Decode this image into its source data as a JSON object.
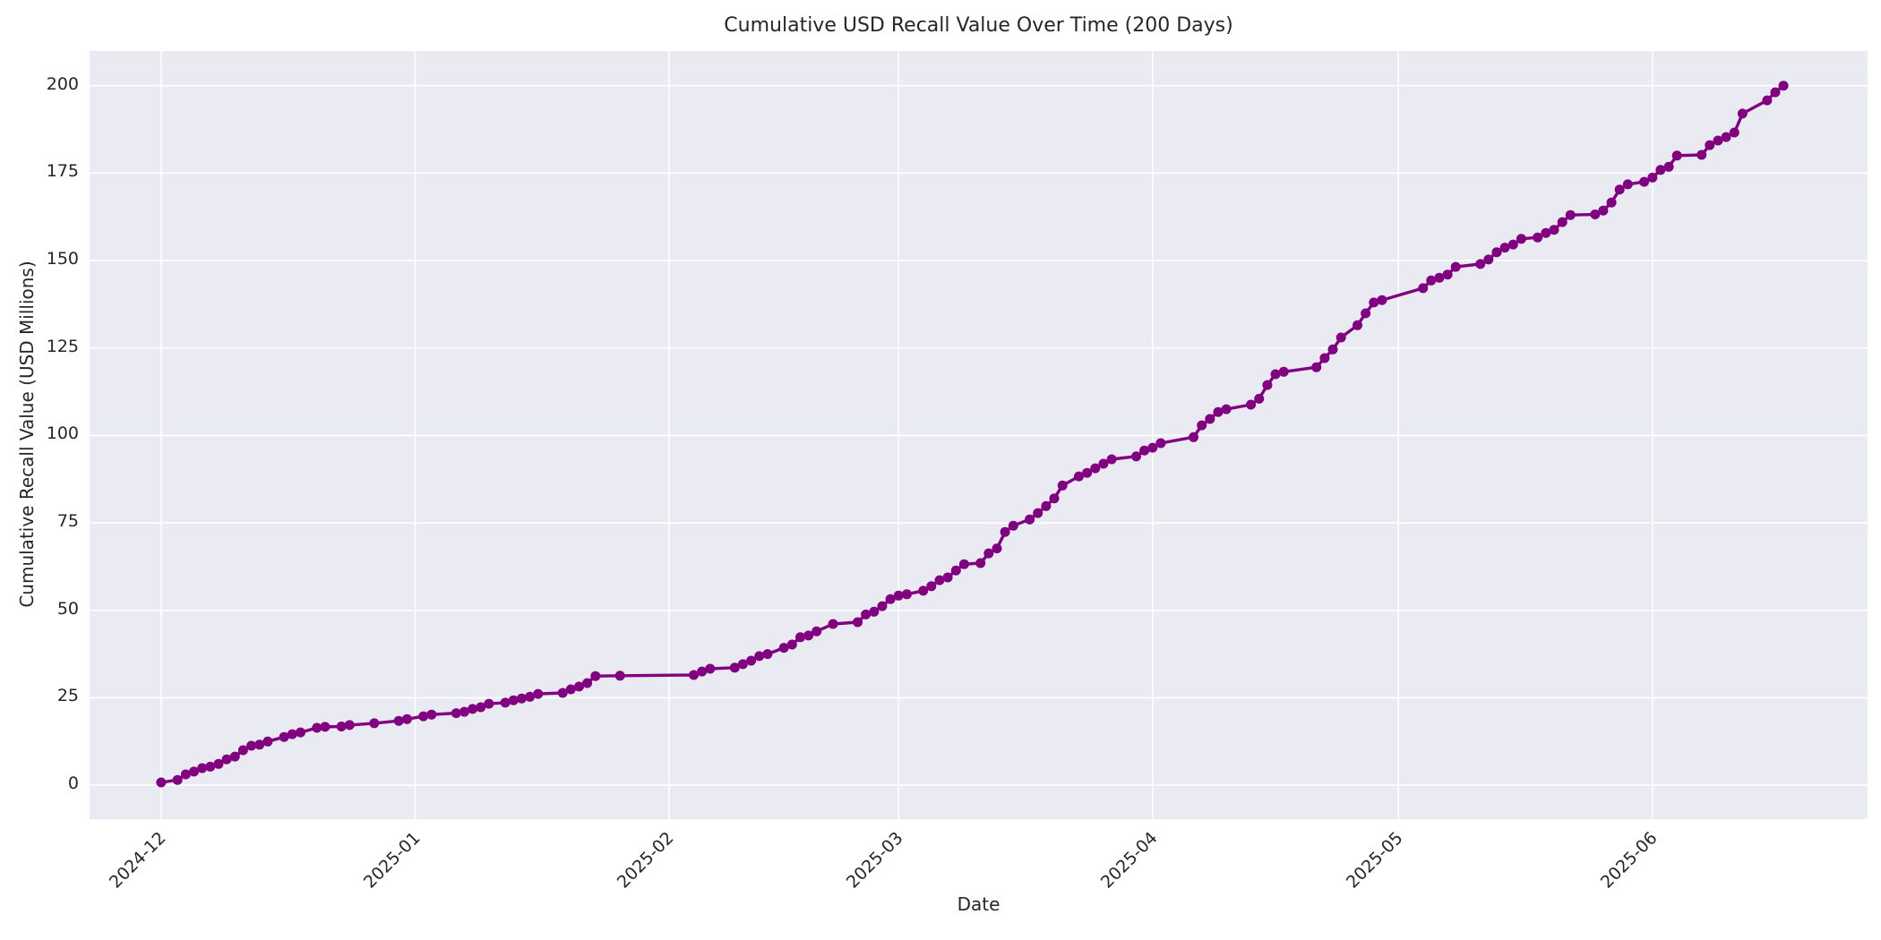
{
  "chart_data": {
    "type": "line",
    "title": "Cumulative USD Recall Value Over Time (200 Days)",
    "xlabel": "Date",
    "ylabel": "Cumulative Recall Value (USD Millions)",
    "legend_position": "none",
    "grid": true,
    "style": {
      "plot_bg": "#eaeaf2",
      "grid_color": "#ffffff",
      "line_color": "#800080",
      "marker_color": "#800080",
      "text_color": "#262626",
      "line_width": 3.4,
      "marker_radius": 5.5
    },
    "x_start_date": "2024-12-01",
    "x_tick_labels": [
      "2024-12",
      "2025-01",
      "2025-02",
      "2025-03",
      "2025-04",
      "2025-05",
      "2025-06"
    ],
    "x_tick_days": [
      0,
      31,
      62,
      90,
      121,
      151,
      182
    ],
    "y_ticks": [
      0,
      25,
      50,
      75,
      100,
      125,
      150,
      175,
      200
    ],
    "xlim_days": [
      -8.74,
      208.26
    ],
    "ylim": [
      -9.7,
      209.9
    ],
    "points": [
      [
        "2024-12-01",
        0.8
      ],
      [
        "2024-12-03",
        1.5
      ],
      [
        "2024-12-04",
        3.1
      ],
      [
        "2024-12-05",
        3.9
      ],
      [
        "2024-12-06",
        4.9
      ],
      [
        "2024-12-07",
        5.3
      ],
      [
        "2024-12-08",
        6.1
      ],
      [
        "2024-12-09",
        7.4
      ],
      [
        "2024-12-10",
        8.2
      ],
      [
        "2024-12-11",
        10.0
      ],
      [
        "2024-12-12",
        11.3
      ],
      [
        "2024-12-13",
        11.6
      ],
      [
        "2024-12-14",
        12.5
      ],
      [
        "2024-12-16",
        13.8
      ],
      [
        "2024-12-17",
        14.6
      ],
      [
        "2024-12-18",
        15.1
      ],
      [
        "2024-12-20",
        16.4
      ],
      [
        "2024-12-21",
        16.7
      ],
      [
        "2024-12-23",
        16.8
      ],
      [
        "2024-12-24",
        17.2
      ],
      [
        "2024-12-27",
        17.7
      ],
      [
        "2024-12-30",
        18.4
      ],
      [
        "2024-12-31",
        18.9
      ],
      [
        "2025-01-02",
        19.7
      ],
      [
        "2025-01-03",
        20.2
      ],
      [
        "2025-01-06",
        20.6
      ],
      [
        "2025-01-07",
        21.0
      ],
      [
        "2025-01-08",
        21.8
      ],
      [
        "2025-01-09",
        22.3
      ],
      [
        "2025-01-10",
        23.3
      ],
      [
        "2025-01-12",
        23.6
      ],
      [
        "2025-01-13",
        24.3
      ],
      [
        "2025-01-14",
        24.8
      ],
      [
        "2025-01-15",
        25.3
      ],
      [
        "2025-01-16",
        26.1
      ],
      [
        "2025-01-19",
        26.4
      ],
      [
        "2025-01-20",
        27.4
      ],
      [
        "2025-01-21",
        28.2
      ],
      [
        "2025-01-22",
        29.2
      ],
      [
        "2025-01-23",
        31.2
      ],
      [
        "2025-01-26",
        31.3
      ],
      [
        "2025-02-04",
        31.5
      ],
      [
        "2025-02-05",
        32.5
      ],
      [
        "2025-02-06",
        33.3
      ],
      [
        "2025-02-09",
        33.6
      ],
      [
        "2025-02-10",
        34.6
      ],
      [
        "2025-02-11",
        35.6
      ],
      [
        "2025-02-12",
        36.9
      ],
      [
        "2025-02-13",
        37.5
      ],
      [
        "2025-02-15",
        39.3
      ],
      [
        "2025-02-16",
        40.2
      ],
      [
        "2025-02-17",
        42.3
      ],
      [
        "2025-02-18",
        42.8
      ],
      [
        "2025-02-19",
        44.0
      ],
      [
        "2025-02-21",
        46.1
      ],
      [
        "2025-02-24",
        46.6
      ],
      [
        "2025-02-25",
        48.8
      ],
      [
        "2025-02-26",
        49.6
      ],
      [
        "2025-02-27",
        51.2
      ],
      [
        "2025-02-28",
        53.2
      ],
      [
        "2025-03-01",
        54.2
      ],
      [
        "2025-03-02",
        54.6
      ],
      [
        "2025-03-04",
        55.6
      ],
      [
        "2025-03-05",
        56.9
      ],
      [
        "2025-03-06",
        58.6
      ],
      [
        "2025-03-07",
        59.4
      ],
      [
        "2025-03-08",
        61.4
      ],
      [
        "2025-03-09",
        63.2
      ],
      [
        "2025-03-11",
        63.5
      ],
      [
        "2025-03-12",
        66.3
      ],
      [
        "2025-03-13",
        67.7
      ],
      [
        "2025-03-14",
        72.4
      ],
      [
        "2025-03-15",
        74.2
      ],
      [
        "2025-03-17",
        76.0
      ],
      [
        "2025-03-18",
        77.8
      ],
      [
        "2025-03-19",
        79.8
      ],
      [
        "2025-03-20",
        82.0
      ],
      [
        "2025-03-21",
        85.7
      ],
      [
        "2025-03-23",
        88.3
      ],
      [
        "2025-03-24",
        89.3
      ],
      [
        "2025-03-25",
        90.6
      ],
      [
        "2025-03-26",
        91.9
      ],
      [
        "2025-03-27",
        93.2
      ],
      [
        "2025-03-30",
        94.0
      ],
      [
        "2025-03-31",
        95.7
      ],
      [
        "2025-04-01",
        96.5
      ],
      [
        "2025-04-02",
        97.8
      ],
      [
        "2025-04-06",
        99.5
      ],
      [
        "2025-04-07",
        102.9
      ],
      [
        "2025-04-08",
        104.7
      ],
      [
        "2025-04-09",
        106.7
      ],
      [
        "2025-04-10",
        107.5
      ],
      [
        "2025-04-13",
        108.8
      ],
      [
        "2025-04-14",
        110.5
      ],
      [
        "2025-04-15",
        114.4
      ],
      [
        "2025-04-16",
        117.5
      ],
      [
        "2025-04-17",
        118.2
      ],
      [
        "2025-04-21",
        119.5
      ],
      [
        "2025-04-22",
        122.1
      ],
      [
        "2025-04-23",
        124.6
      ],
      [
        "2025-04-24",
        128.0
      ],
      [
        "2025-04-26",
        131.5
      ],
      [
        "2025-04-27",
        134.9
      ],
      [
        "2025-04-28",
        138.0
      ],
      [
        "2025-04-29",
        138.7
      ],
      [
        "2025-05-04",
        142.1
      ],
      [
        "2025-05-05",
        144.3
      ],
      [
        "2025-05-06",
        145.1
      ],
      [
        "2025-05-07",
        146.0
      ],
      [
        "2025-05-08",
        148.2
      ],
      [
        "2025-05-11",
        149.0
      ],
      [
        "2025-05-12",
        150.3
      ],
      [
        "2025-05-13",
        152.4
      ],
      [
        "2025-05-14",
        153.7
      ],
      [
        "2025-05-15",
        154.6
      ],
      [
        "2025-05-16",
        156.2
      ],
      [
        "2025-05-18",
        156.6
      ],
      [
        "2025-05-19",
        157.9
      ],
      [
        "2025-05-20",
        158.8
      ],
      [
        "2025-05-21",
        161.0
      ],
      [
        "2025-05-22",
        163.0
      ],
      [
        "2025-05-25",
        163.2
      ],
      [
        "2025-05-26",
        164.3
      ],
      [
        "2025-05-27",
        166.6
      ],
      [
        "2025-05-28",
        170.3
      ],
      [
        "2025-05-29",
        171.8
      ],
      [
        "2025-05-31",
        172.5
      ],
      [
        "2025-06-01",
        173.7
      ],
      [
        "2025-06-02",
        175.9
      ],
      [
        "2025-06-03",
        176.8
      ],
      [
        "2025-06-04",
        180.0
      ],
      [
        "2025-06-07",
        180.2
      ],
      [
        "2025-06-08",
        183.0
      ],
      [
        "2025-06-09",
        184.3
      ],
      [
        "2025-06-10",
        185.3
      ],
      [
        "2025-06-11",
        186.6
      ],
      [
        "2025-06-12",
        192.0
      ],
      [
        "2025-06-15",
        195.8
      ],
      [
        "2025-06-16",
        198.1
      ],
      [
        "2025-06-17",
        200.0
      ]
    ]
  }
}
